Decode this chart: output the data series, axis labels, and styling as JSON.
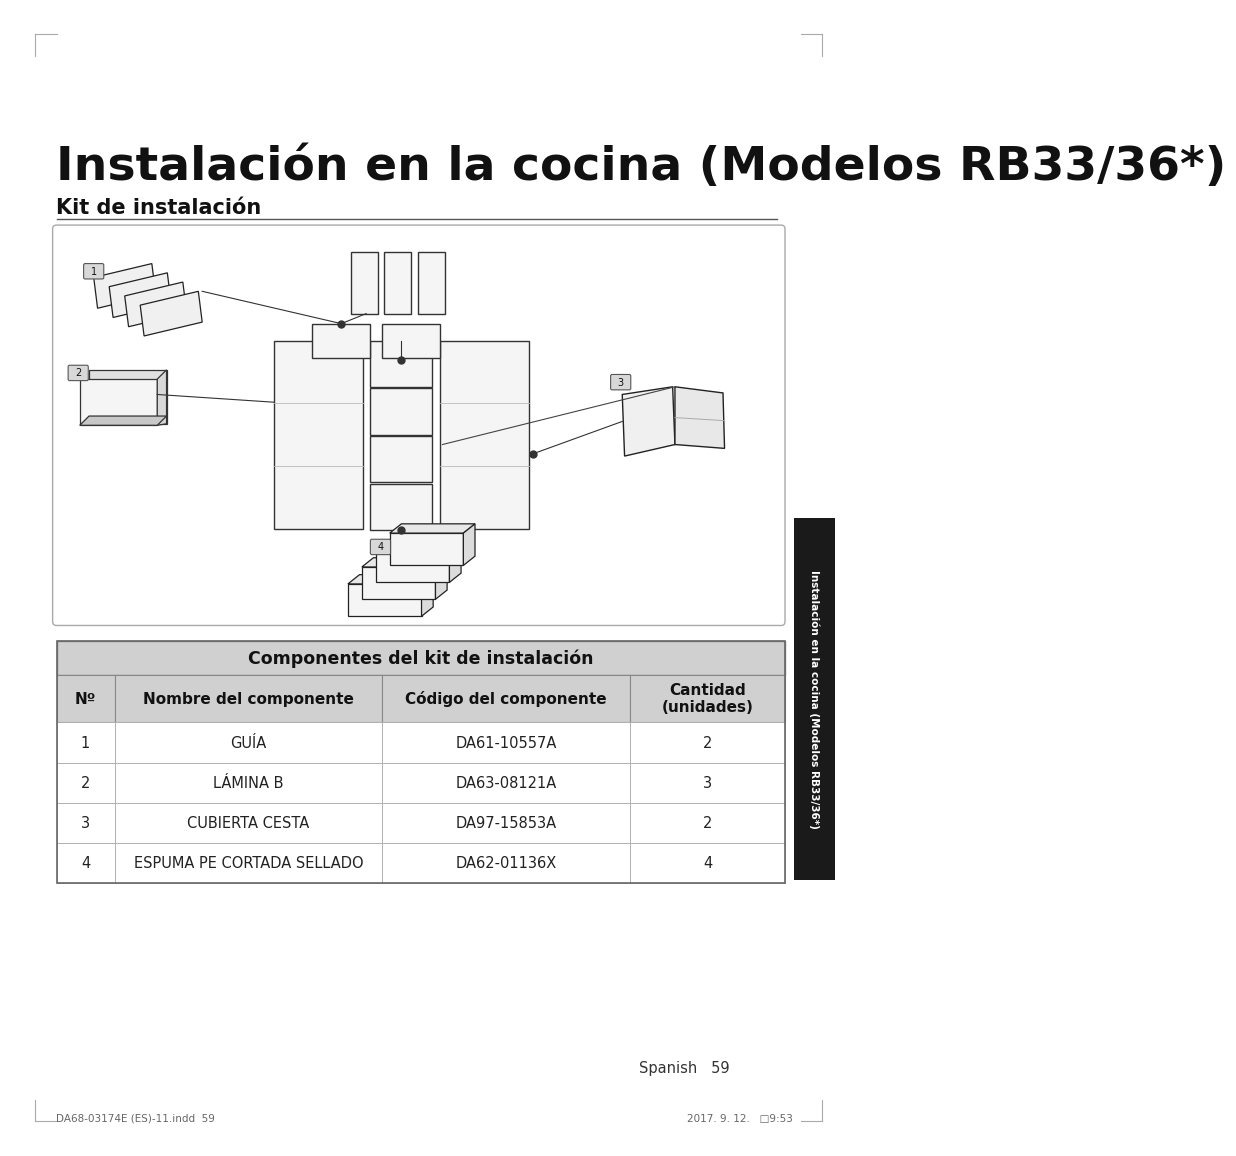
{
  "title": "Instalación en la cocina (Modelos RB33/36*)",
  "subtitle": "Kit de instalación",
  "bg_color": "#ffffff",
  "table_title": "Componentes del kit de instalación",
  "table_header": [
    "Nº",
    "Nombre del componente",
    "Código del componente",
    "Cantidad\n(unidades)"
  ],
  "table_rows": [
    [
      "1",
      "GUÍA",
      "DA61-10557A",
      "2"
    ],
    [
      "2",
      "LÁMINA B",
      "DA63-08121A",
      "3"
    ],
    [
      "3",
      "CUBIERTA CESTA",
      "DA97-15853A",
      "2"
    ],
    [
      "4",
      "ESPUMA PE CORTADA SELLADO",
      "DA62-01136X",
      "4"
    ]
  ],
  "sidebar_text": "Instalación en la cocina (Modelos RB33/36*)",
  "footer_left": "DA68-03174E (ES)-11.indd  59",
  "footer_right": "2017. 9. 12.   □9:53",
  "page_number": "Spanish   59",
  "sidebar_bg": "#1a1a1a",
  "table_header_bg": "#d0d0d0",
  "table_white_bg": "#ffffff"
}
